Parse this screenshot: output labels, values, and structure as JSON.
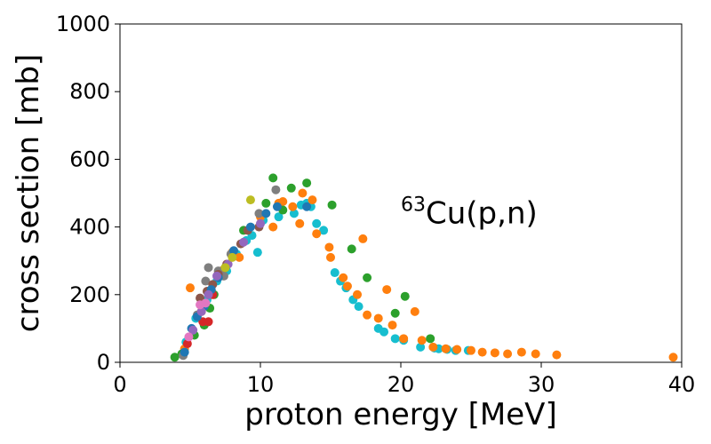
{
  "chart_data": {
    "type": "scatter",
    "title": "",
    "xlabel": "proton energy [MeV]",
    "ylabel": "cross section [mb]",
    "xlim": [
      0,
      40
    ],
    "ylim": [
      0,
      1000
    ],
    "xticks": [
      "0",
      "10",
      "20",
      "30",
      "40"
    ],
    "yticks": [
      "0",
      "200",
      "400",
      "600",
      "800",
      "1000"
    ],
    "grid": false,
    "legend": "none",
    "annotation": {
      "sup": "63",
      "text": "Cu(p,n)"
    },
    "series": [
      {
        "color": "#17becf",
        "points": [
          [
            4.7,
            60
          ],
          [
            5.4,
            130
          ],
          [
            6.2,
            185
          ],
          [
            6.9,
            240
          ],
          [
            7.6,
            270
          ],
          [
            8.3,
            320
          ],
          [
            9.0,
            360
          ],
          [
            9.4,
            375
          ],
          [
            9.8,
            325
          ],
          [
            10.2,
            420
          ],
          [
            11.3,
            430
          ],
          [
            12.4,
            440
          ],
          [
            12.9,
            465
          ],
          [
            13.3,
            470
          ],
          [
            13.6,
            460
          ],
          [
            14.0,
            410
          ],
          [
            14.5,
            390
          ],
          [
            15.3,
            265
          ],
          [
            15.7,
            240
          ],
          [
            16.1,
            220
          ],
          [
            16.6,
            185
          ],
          [
            17.0,
            165
          ],
          [
            18.4,
            100
          ],
          [
            18.8,
            90
          ],
          [
            19.6,
            70
          ],
          [
            20.2,
            65
          ],
          [
            21.4,
            45
          ],
          [
            22.4,
            42
          ],
          [
            22.7,
            40
          ],
          [
            23.3,
            38
          ],
          [
            23.9,
            35
          ],
          [
            24.8,
            35
          ]
        ]
      },
      {
        "color": "#ff7f0e",
        "points": [
          [
            4.6,
            40
          ],
          [
            5.0,
            220
          ],
          [
            5.8,
            150
          ],
          [
            6.5,
            215
          ],
          [
            7.2,
            270
          ],
          [
            8.0,
            325
          ],
          [
            8.5,
            310
          ],
          [
            10.0,
            430
          ],
          [
            10.9,
            400
          ],
          [
            11.3,
            470
          ],
          [
            11.6,
            475
          ],
          [
            12.3,
            460
          ],
          [
            12.8,
            410
          ],
          [
            13.0,
            500
          ],
          [
            13.7,
            480
          ],
          [
            14.0,
            380
          ],
          [
            14.9,
            340
          ],
          [
            15.0,
            310
          ],
          [
            15.9,
            250
          ],
          [
            16.2,
            225
          ],
          [
            16.9,
            200
          ],
          [
            17.3,
            365
          ],
          [
            17.6,
            140
          ],
          [
            18.4,
            130
          ],
          [
            19.0,
            215
          ],
          [
            19.4,
            110
          ],
          [
            20.2,
            70
          ],
          [
            21.0,
            150
          ],
          [
            21.5,
            65
          ],
          [
            22.3,
            45
          ],
          [
            23.2,
            40
          ],
          [
            24.0,
            38
          ],
          [
            25.0,
            35
          ],
          [
            25.8,
            30
          ],
          [
            26.7,
            28
          ],
          [
            27.6,
            25
          ],
          [
            28.6,
            30
          ],
          [
            29.6,
            25
          ],
          [
            31.1,
            22
          ],
          [
            39.4,
            15
          ]
        ]
      },
      {
        "color": "#2ca02c",
        "points": [
          [
            3.9,
            15
          ],
          [
            4.4,
            25
          ],
          [
            5.3,
            80
          ],
          [
            6.0,
            110
          ],
          [
            6.4,
            160
          ],
          [
            6.7,
            200
          ],
          [
            7.5,
            280
          ],
          [
            8.8,
            390
          ],
          [
            10.4,
            470
          ],
          [
            10.9,
            545
          ],
          [
            11.6,
            450
          ],
          [
            12.2,
            515
          ],
          [
            13.3,
            530
          ],
          [
            15.1,
            465
          ],
          [
            16.5,
            335
          ],
          [
            17.6,
            250
          ],
          [
            19.6,
            145
          ],
          [
            20.3,
            195
          ],
          [
            22.1,
            70
          ]
        ]
      },
      {
        "color": "#7f7f7f",
        "points": [
          [
            4.5,
            20
          ],
          [
            5.5,
            140
          ],
          [
            6.1,
            240
          ],
          [
            6.3,
            280
          ],
          [
            7.0,
            270
          ],
          [
            7.4,
            255
          ],
          [
            7.9,
            320
          ],
          [
            9.9,
            440
          ],
          [
            11.1,
            510
          ]
        ]
      },
      {
        "color": "#8c564b",
        "points": [
          [
            5.7,
            190
          ],
          [
            6.2,
            210
          ],
          [
            6.6,
            230
          ],
          [
            7.0,
            260
          ],
          [
            7.6,
            290
          ],
          [
            8.6,
            350
          ],
          [
            9.1,
            390
          ],
          [
            9.9,
            400
          ]
        ]
      },
      {
        "color": "#d62728",
        "points": [
          [
            4.8,
            55
          ],
          [
            5.9,
            120
          ],
          [
            6.3,
            120
          ],
          [
            6.6,
            200
          ]
        ]
      },
      {
        "color": "#1f77b4",
        "points": [
          [
            4.6,
            30
          ],
          [
            5.1,
            100
          ],
          [
            5.5,
            135
          ],
          [
            6.0,
            165
          ],
          [
            6.5,
            215
          ],
          [
            7.0,
            250
          ],
          [
            8.1,
            330
          ],
          [
            9.3,
            400
          ],
          [
            10.4,
            440
          ],
          [
            11.2,
            460
          ],
          [
            13.3,
            460
          ]
        ]
      },
      {
        "color": "#9467bd",
        "points": [
          [
            5.2,
            95
          ],
          [
            5.8,
            150
          ],
          [
            6.3,
            200
          ],
          [
            6.9,
            255
          ],
          [
            7.7,
            290
          ],
          [
            8.8,
            355
          ],
          [
            10.0,
            410
          ]
        ]
      },
      {
        "color": "#e377c2",
        "points": [
          [
            4.9,
            75
          ],
          [
            5.7,
            170
          ],
          [
            6.1,
            175
          ]
        ]
      },
      {
        "color": "#bcbd22",
        "points": [
          [
            9.3,
            480
          ],
          [
            8.0,
            310
          ],
          [
            7.5,
            280
          ]
        ]
      }
    ]
  }
}
